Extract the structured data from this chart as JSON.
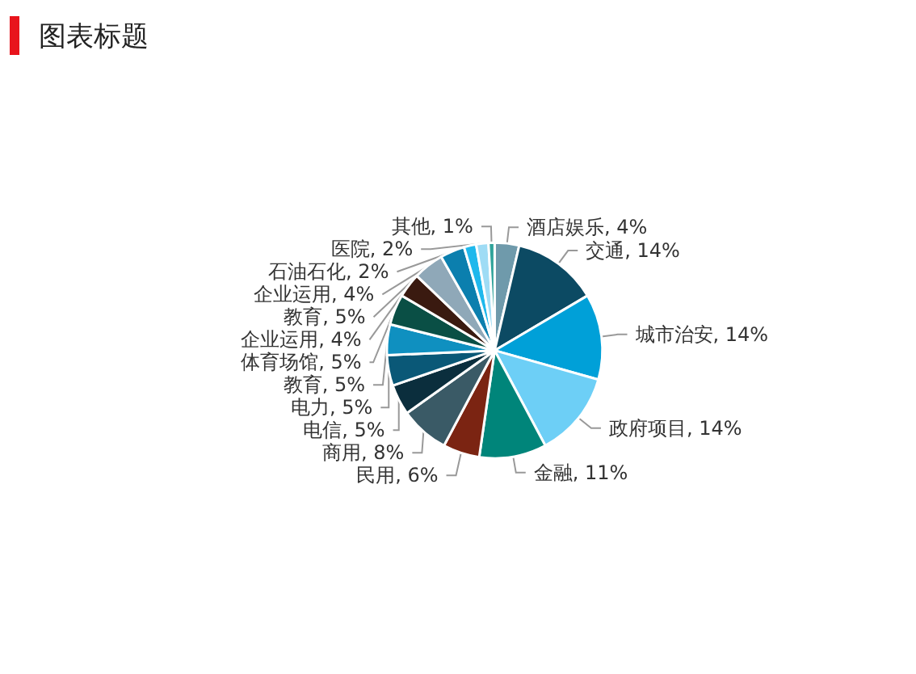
{
  "chart_data": {
    "type": "pie",
    "title": "图表标题",
    "categories": [
      "酒店娱乐",
      "交通",
      "城市治安",
      "政府项目",
      "金融",
      "民用",
      "商用",
      "电信",
      "电力",
      "教育",
      "体育场馆",
      "企业运用",
      "教育",
      "企业运用",
      "石油石化",
      "医院",
      "其他"
    ],
    "values": [
      4,
      14,
      14,
      14,
      11,
      6,
      8,
      5,
      5,
      5,
      5,
      4,
      5,
      4,
      2,
      2,
      1
    ],
    "value_labels": [
      "4%",
      "14%",
      "14%",
      "14%",
      "11%",
      "6%",
      "8%",
      "5%",
      "5%",
      "5%",
      "5%",
      "4%",
      "5%",
      "4%",
      "2%",
      "2%",
      "1%"
    ],
    "colors": [
      "#6f9aab",
      "#0c4a63",
      "#00a0d8",
      "#6dcff6",
      "#00857a",
      "#7b2412",
      "#3a5a66",
      "#0b2e3d",
      "#0a5877",
      "#0f90c0",
      "#0a4f45",
      "#3a1a10",
      "#8fa8b8",
      "#0b7fae",
      "#1fb8ec",
      "#9fdcf5",
      "#2fa39a"
    ],
    "legend": false
  }
}
